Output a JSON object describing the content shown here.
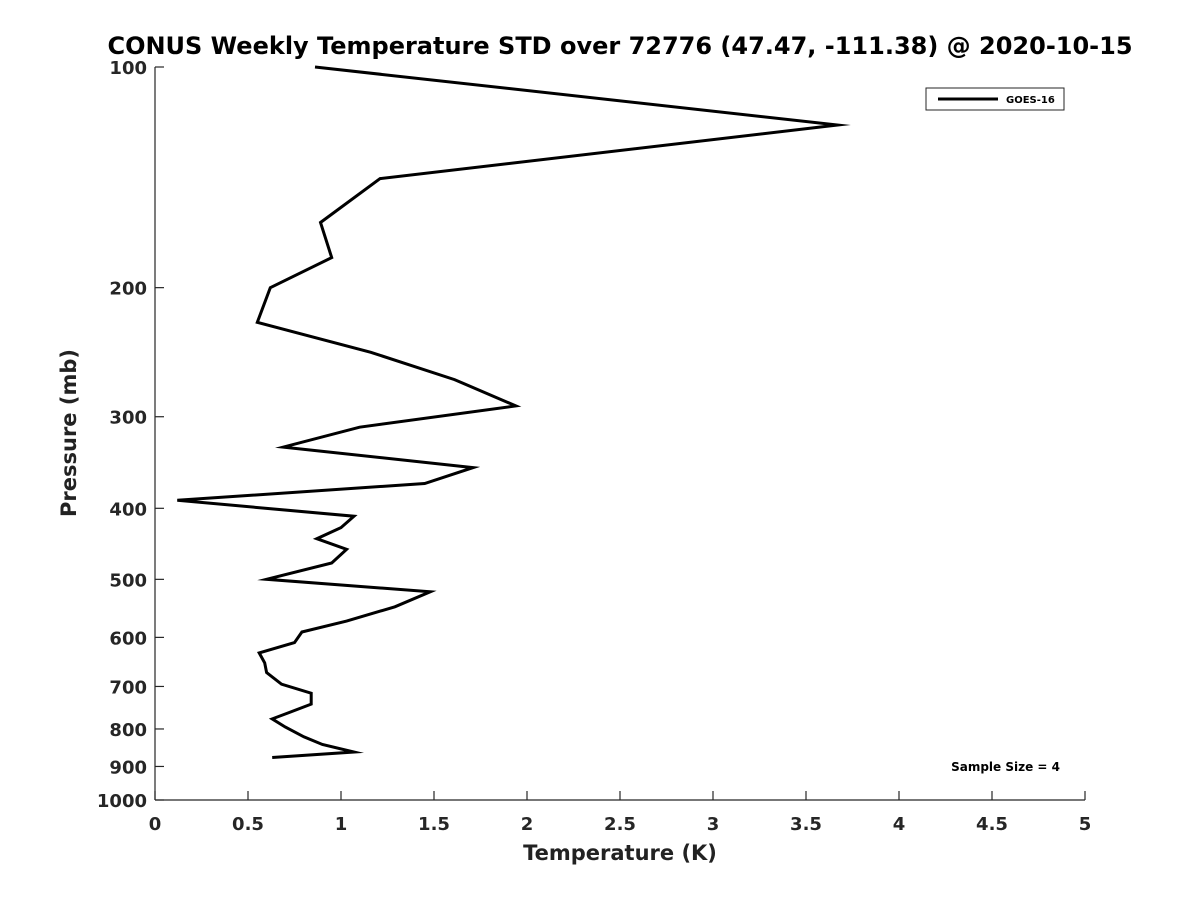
{
  "chart_data": {
    "type": "line",
    "title": "CONUS Weekly Temperature STD over 72776 (47.47, -111.38) @ 2020-10-15",
    "xlabel": "Temperature (K)",
    "ylabel": "Pressure (mb)",
    "xlim": [
      0,
      5
    ],
    "ylim": [
      100,
      1000
    ],
    "y_scale": "log",
    "y_reversed": true,
    "x_ticks": [
      "0",
      "0.5",
      "1",
      "1.5",
      "2",
      "2.5",
      "3",
      "3.5",
      "4",
      "4.5",
      "5"
    ],
    "y_ticks": [
      "100",
      "200",
      "300",
      "400",
      "500",
      "600",
      "700",
      "800",
      "900",
      "1000"
    ],
    "grid": false,
    "legend": {
      "position": "top-right",
      "entries": [
        "GOES-16"
      ]
    },
    "annotation": "Sample Size = 4",
    "series": [
      {
        "name": "GOES-16",
        "color": "#000000",
        "x": [
          0.86,
          3.67,
          1.21,
          0.89,
          0.95,
          0.62,
          0.55,
          1.16,
          1.61,
          1.94,
          1.1,
          0.69,
          1.71,
          1.45,
          0.12,
          1.07,
          1.0,
          0.87,
          1.03,
          0.95,
          0.6,
          1.48,
          1.29,
          1.03,
          0.79,
          0.75,
          0.56,
          0.59,
          0.6,
          0.68,
          0.84,
          0.84,
          0.72,
          0.63,
          0.7,
          0.8,
          0.9,
          1.07,
          0.63
        ],
        "y": [
          100,
          120,
          142,
          163,
          182,
          200,
          223,
          245,
          267,
          290,
          310,
          330,
          352,
          370,
          390,
          410,
          425,
          440,
          455,
          475,
          500,
          520,
          545,
          570,
          590,
          610,
          630,
          650,
          670,
          695,
          715,
          740,
          760,
          775,
          795,
          820,
          840,
          860,
          875
        ]
      }
    ]
  }
}
